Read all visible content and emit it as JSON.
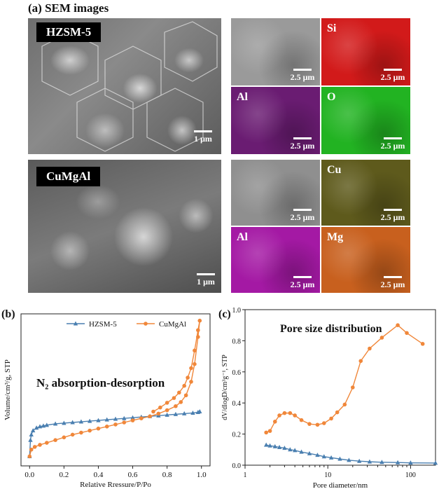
{
  "figure": {
    "panel_a_title": "(a) SEM images",
    "panel_b_label": "(b)",
    "panel_c_label": "(c)"
  },
  "sem": {
    "hzsm5": {
      "label": "HZSM-5",
      "main_scale": "1 μm",
      "tiles": [
        {
          "label": "",
          "scale": "2.5 μm",
          "color": "#9a9a9a"
        },
        {
          "label": "Si",
          "scale": "2.5 μm",
          "color": "#d21a1a"
        },
        {
          "label": "Al",
          "scale": "2.5 μm",
          "color": "#6a1c72"
        },
        {
          "label": "O",
          "scale": "2.5 μm",
          "color": "#22b322"
        }
      ]
    },
    "cumgal": {
      "label": "CuMgAl",
      "main_scale": "1 μm",
      "tiles": [
        {
          "label": "",
          "scale": "2.5 μm",
          "color": "#8f8f8f"
        },
        {
          "label": "Cu",
          "scale": "2.5 μm",
          "color": "#5e5a1c"
        },
        {
          "label": "Al",
          "scale": "2.5 μm",
          "color": "#a419a4"
        },
        {
          "label": "Mg",
          "scale": "2.5 μm",
          "color": "#c8601e"
        }
      ]
    }
  },
  "chart_data": [
    {
      "type": "line",
      "annotation": "N₂ absorption-desorption",
      "xlabel": "Relative Rressure/P/Po",
      "ylabel": "Volume/cm³/g, STP",
      "xlim": [
        -0.05,
        1.05
      ],
      "x_ticks": [
        "0.0",
        "0.2",
        "0.4",
        "0.6",
        "0.8",
        "1.0"
      ],
      "legend_position": "top",
      "series": [
        {
          "name": "HZSM-5",
          "color": "#4a7fb0",
          "marker": "triangle",
          "x": [
            0.0,
            0.005,
            0.01,
            0.02,
            0.04,
            0.06,
            0.08,
            0.1,
            0.15,
            0.2,
            0.25,
            0.3,
            0.35,
            0.4,
            0.45,
            0.5,
            0.55,
            0.6,
            0.65,
            0.7,
            0.75,
            0.8,
            0.85,
            0.9,
            0.95,
            0.98,
            0.99
          ],
          "y": [
            0.0,
            0.12,
            0.16,
            0.19,
            0.21,
            0.22,
            0.225,
            0.23,
            0.24,
            0.245,
            0.25,
            0.255,
            0.26,
            0.265,
            0.27,
            0.275,
            0.28,
            0.285,
            0.29,
            0.295,
            0.3,
            0.305,
            0.31,
            0.315,
            0.32,
            0.325,
            0.33
          ]
        },
        {
          "name": "CuMgAl",
          "color": "#f0873a",
          "marker": "circle",
          "x": [
            0.0,
            0.01,
            0.03,
            0.06,
            0.1,
            0.15,
            0.2,
            0.25,
            0.3,
            0.35,
            0.4,
            0.45,
            0.5,
            0.55,
            0.6,
            0.65,
            0.7,
            0.75,
            0.8,
            0.85,
            0.88,
            0.91,
            0.94,
            0.96,
            0.98,
            0.99,
            0.98,
            0.96,
            0.94,
            0.92,
            0.9,
            0.87,
            0.84,
            0.8,
            0.76,
            0.72
          ],
          "y": [
            0.0,
            0.05,
            0.07,
            0.085,
            0.1,
            0.12,
            0.14,
            0.16,
            0.175,
            0.19,
            0.205,
            0.22,
            0.235,
            0.25,
            0.265,
            0.28,
            0.295,
            0.315,
            0.34,
            0.37,
            0.4,
            0.45,
            0.55,
            0.68,
            0.88,
            1.0,
            0.93,
            0.78,
            0.65,
            0.58,
            0.52,
            0.47,
            0.43,
            0.395,
            0.36,
            0.33
          ]
        }
      ]
    },
    {
      "type": "line",
      "annotation": "Pore size distribution",
      "xlabel": "Pore diameter/nm",
      "ylabel": "dV/dlogD/cm³g⁻¹, STP",
      "xscale": "log",
      "xlim": [
        1,
        200
      ],
      "ylim": [
        0.0,
        1.0
      ],
      "x_ticks": [
        "1",
        "10",
        "100"
      ],
      "y_ticks": [
        "0.0",
        "0.2",
        "0.4",
        "0.6",
        "0.8",
        "1.0"
      ],
      "series": [
        {
          "color": "#f0873a",
          "marker": "circle",
          "x": [
            1.8,
            2.0,
            2.3,
            2.6,
            3.0,
            3.5,
            4.0,
            4.8,
            6.0,
            7.5,
            9.0,
            11,
            13,
            16,
            20,
            25,
            32,
            45,
            70,
            90,
            140
          ],
          "y": [
            0.21,
            0.22,
            0.28,
            0.32,
            0.335,
            0.335,
            0.32,
            0.29,
            0.265,
            0.26,
            0.27,
            0.3,
            0.34,
            0.39,
            0.5,
            0.67,
            0.75,
            0.82,
            0.9,
            0.85,
            0.78
          ]
        },
        {
          "color": "#4a7fb0",
          "marker": "triangle",
          "x": [
            1.8,
            2.0,
            2.3,
            2.6,
            3.0,
            3.5,
            4.0,
            4.8,
            6.0,
            7.5,
            9.0,
            11,
            14,
            18,
            24,
            32,
            45,
            70,
            100,
            200
          ],
          "y": [
            0.13,
            0.125,
            0.12,
            0.115,
            0.11,
            0.1,
            0.095,
            0.085,
            0.075,
            0.065,
            0.055,
            0.048,
            0.04,
            0.032,
            0.026,
            0.022,
            0.019,
            0.017,
            0.015,
            0.014
          ]
        }
      ]
    }
  ]
}
